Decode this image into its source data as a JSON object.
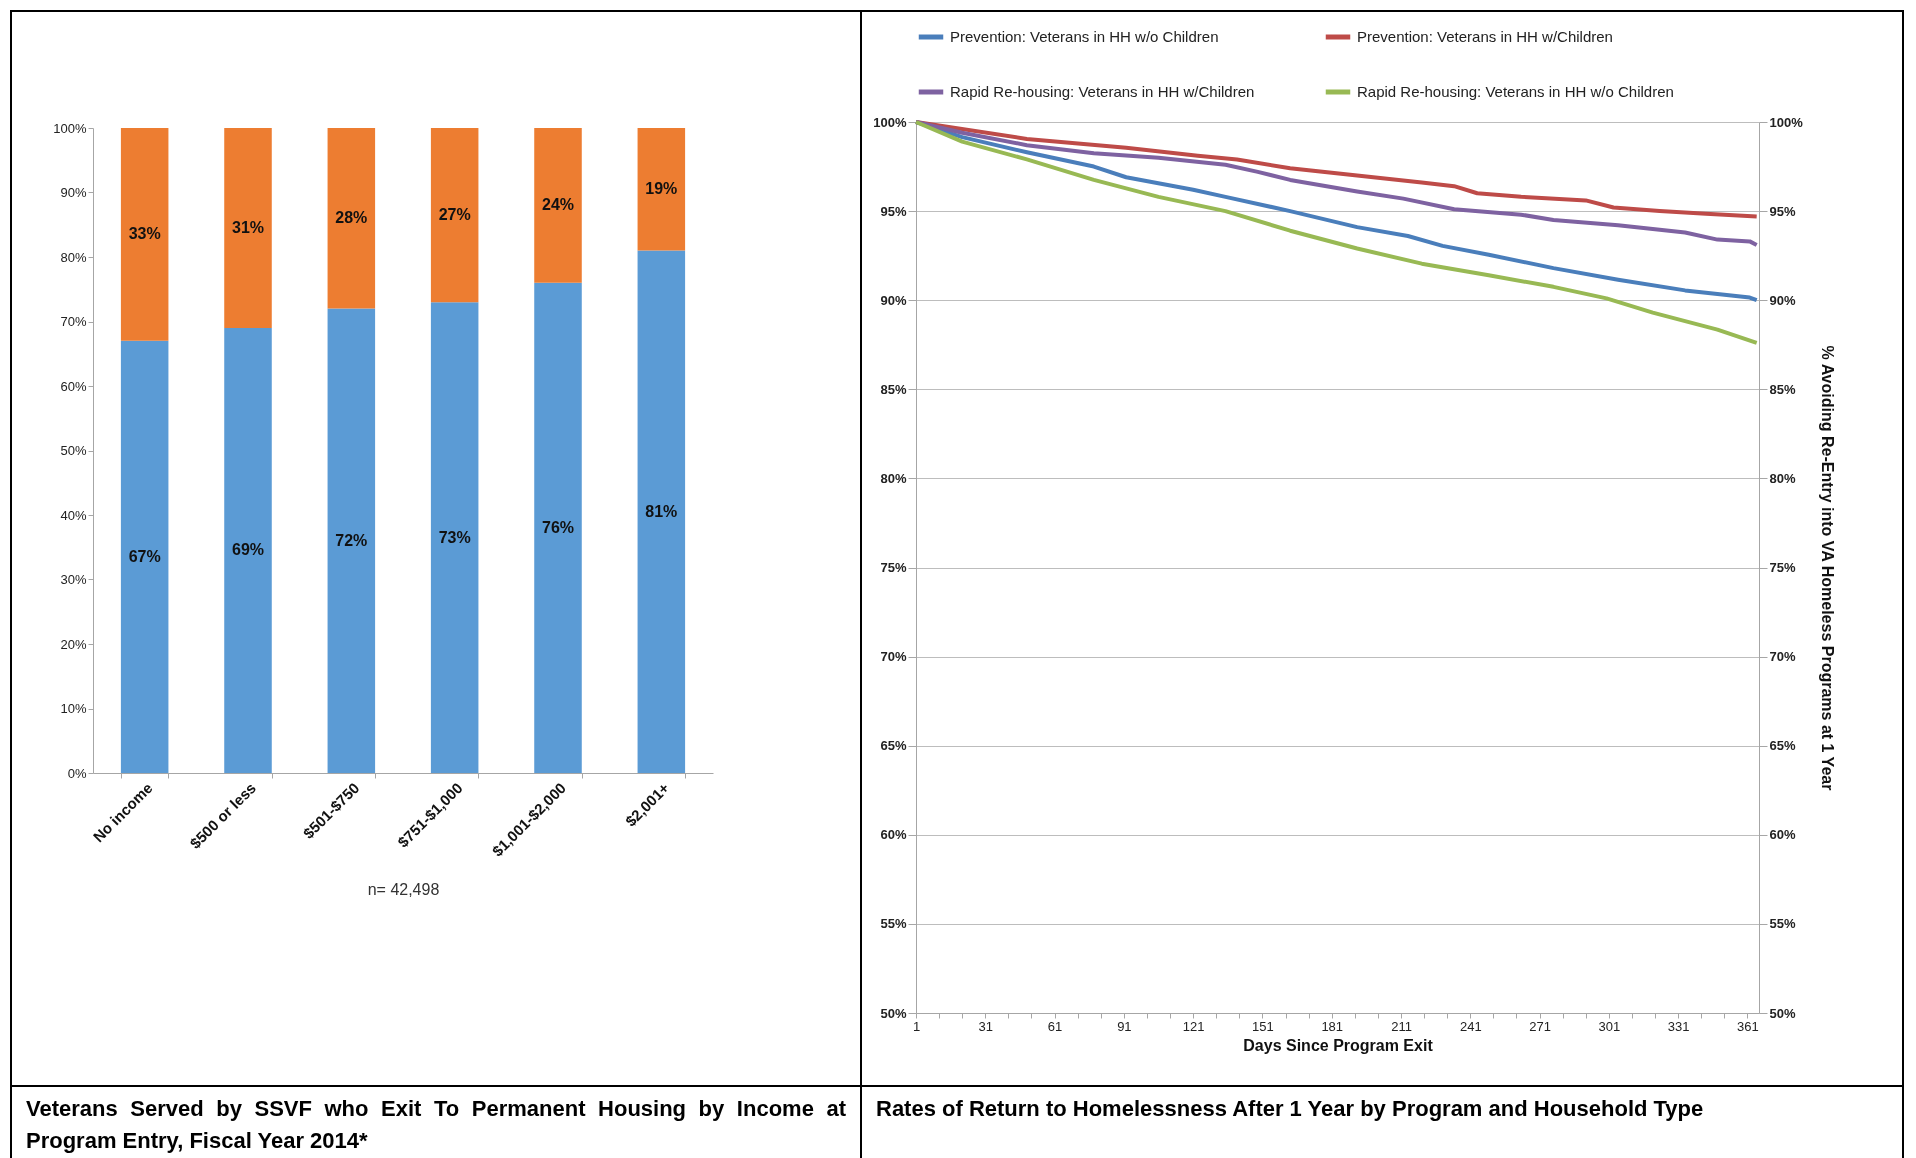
{
  "chart_data": [
    {
      "type": "bar",
      "stacked": true,
      "title": "Veterans Served by SSVF who Exit To Permanent Housing by Income at Program Entry, Fiscal Year 2014*",
      "annotations": [
        "n= 42,498"
      ],
      "categories": [
        "No income",
        "$500 or less",
        "$501-$750",
        "$751-$1,000",
        "$1,001-$2,000",
        "$2,001+"
      ],
      "series": [
        {
          "color": "#5b9bd5",
          "values": [
            67,
            69,
            72,
            73,
            76,
            81
          ],
          "value_labels": [
            "67%",
            "69%",
            "72%",
            "73%",
            "76%",
            "81%"
          ]
        },
        {
          "color": "#ed7d31",
          "values": [
            33,
            31,
            28,
            27,
            24,
            19
          ],
          "value_labels": [
            "33%",
            "31%",
            "28%",
            "27%",
            "24%",
            "19%"
          ]
        }
      ],
      "ylim": [
        0,
        100
      ],
      "yticks": [
        {
          "value": 0,
          "label": "0%"
        },
        {
          "value": 10,
          "label": "10%"
        },
        {
          "value": 20,
          "label": "20%"
        },
        {
          "value": 30,
          "label": "30%"
        },
        {
          "value": 40,
          "label": "40%"
        },
        {
          "value": 50,
          "label": "50%"
        },
        {
          "value": 60,
          "label": "60%"
        },
        {
          "value": 70,
          "label": "70%"
        },
        {
          "value": 80,
          "label": "80%"
        },
        {
          "value": 90,
          "label": "90%"
        },
        {
          "value": 100,
          "label": "100%"
        }
      ],
      "grid": false,
      "legend": false
    },
    {
      "type": "line",
      "title": "Rates of Return to Homelessness After 1 Year by Program and Household Type",
      "xlabel": "Days Since Program Exit",
      "y2label": "% Avoiding Re-Entry into VA Homeless Programs at 1 Year",
      "series": [
        {
          "name": "Prevention: Veterans in HH w/o Children",
          "color": "#4a7ebb",
          "x": [
            1,
            21,
            49,
            78,
            92,
            121,
            135,
            163,
            192,
            214,
            229,
            249,
            277,
            305,
            334,
            362,
            365
          ],
          "values": [
            100,
            99.15,
            98.3,
            97.5,
            96.9,
            96.2,
            95.8,
            95.0,
            94.1,
            93.6,
            93.05,
            92.55,
            91.8,
            91.15,
            90.55,
            90.15,
            90.0
          ]
        },
        {
          "name": "Prevention: Veterans in HH w/Children",
          "color": "#be4b48",
          "x": [
            1,
            49,
            92,
            123,
            140,
            163,
            192,
            220,
            234,
            244,
            263,
            291,
            303,
            323,
            343,
            365
          ],
          "values": [
            100,
            99.05,
            98.55,
            98.1,
            97.9,
            97.4,
            97.0,
            96.6,
            96.4,
            96.0,
            95.8,
            95.6,
            95.2,
            95.0,
            94.85,
            94.7
          ]
        },
        {
          "name": "Rapid Re-housing: Veterans in HH w/Children",
          "color": "#7e62a1",
          "x": [
            1,
            21,
            49,
            78,
            106,
            135,
            149,
            163,
            192,
            212,
            234,
            263,
            277,
            305,
            334,
            348,
            362,
            365
          ],
          "values": [
            100,
            99.4,
            98.7,
            98.25,
            98.0,
            97.6,
            97.2,
            96.75,
            96.1,
            95.7,
            95.1,
            94.8,
            94.5,
            94.2,
            93.8,
            93.4,
            93.3,
            93.1
          ]
        },
        {
          "name": "Rapid Re-housing: Veterans in HH w/o Children",
          "color": "#98b954",
          "x": [
            1,
            21,
            49,
            78,
            106,
            135,
            163,
            192,
            220,
            249,
            277,
            300,
            320,
            348,
            365
          ],
          "values": [
            100,
            98.9,
            97.9,
            96.75,
            95.8,
            95.0,
            93.9,
            92.9,
            92.05,
            91.4,
            90.75,
            90.1,
            89.3,
            88.35,
            87.6
          ]
        }
      ],
      "xlim": [
        1,
        366
      ],
      "xticks": [
        1,
        {
          "value": 11,
          "label": null
        },
        {
          "value": 21,
          "label": null
        },
        31,
        {
          "value": 41,
          "label": null
        },
        {
          "value": 51,
          "label": null
        },
        61,
        {
          "value": 71,
          "label": null
        },
        {
          "value": 81,
          "label": null
        },
        91,
        {
          "value": 101,
          "label": null
        },
        {
          "value": 111,
          "label": null
        },
        121,
        {
          "value": 131,
          "label": null
        },
        {
          "value": 141,
          "label": null
        },
        151,
        {
          "value": 161,
          "label": null
        },
        {
          "value": 171,
          "label": null
        },
        181,
        {
          "value": 191,
          "label": null
        },
        {
          "value": 201,
          "label": null
        },
        211,
        {
          "value": 221,
          "label": null
        },
        {
          "value": 231,
          "label": null
        },
        241,
        {
          "value": 251,
          "label": null
        },
        {
          "value": 261,
          "label": null
        },
        271,
        {
          "value": 281,
          "label": null
        },
        {
          "value": 291,
          "label": null
        },
        301,
        {
          "value": 311,
          "label": null
        },
        {
          "value": 321,
          "label": null
        },
        331,
        {
          "value": 341,
          "label": null
        },
        {
          "value": 351,
          "label": null
        },
        361
      ],
      "ylim": [
        50,
        100
      ],
      "yticks": [
        {
          "value": 50,
          "label": "50%"
        },
        {
          "value": 55,
          "label": "55%"
        },
        {
          "value": 60,
          "label": "60%"
        },
        {
          "value": 65,
          "label": "65%"
        },
        {
          "value": 70,
          "label": "70%"
        },
        {
          "value": 75,
          "label": "75%"
        },
        {
          "value": 80,
          "label": "80%"
        },
        {
          "value": 85,
          "label": "85%"
        },
        {
          "value": 90,
          "label": "90%"
        },
        {
          "value": 95,
          "label": "95%"
        },
        {
          "value": 100,
          "label": "100%"
        }
      ],
      "y2lim": [
        50,
        100
      ],
      "y2ticks": [
        {
          "value": 50,
          "label": "50%"
        },
        {
          "value": 55,
          "label": "55%"
        },
        {
          "value": 60,
          "label": "60%"
        },
        {
          "value": 65,
          "label": "65%"
        },
        {
          "value": 70,
          "label": "70%"
        },
        {
          "value": 75,
          "label": "75%"
        },
        {
          "value": 80,
          "label": "80%"
        },
        {
          "value": 85,
          "label": "85%"
        },
        {
          "value": 90,
          "label": "90%"
        },
        {
          "value": 95,
          "label": "95%"
        },
        {
          "value": 100,
          "label": "100%"
        }
      ],
      "grid": "y",
      "legend": "top",
      "marker": "none",
      "line_style": "solid"
    }
  ]
}
